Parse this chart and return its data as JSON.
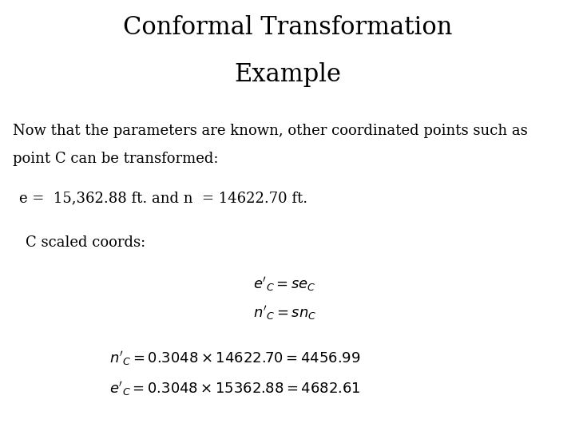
{
  "title_line1": "Conformal Transformation",
  "title_line2": "Example",
  "title_fontsize": 22,
  "title_fontfamily": "serif",
  "bg_color": "#ffffff",
  "text_color": "#000000",
  "body_text1_line1": "Now that the parameters are known, other coordinated points such as",
  "body_text1_line2": "point C can be transformed:",
  "body_text2": "e =  15,362.88 ft. and n  = 14622.70 ft.",
  "body_text3": "C scaled coords:",
  "eq1": "$e'_C = se_C$",
  "eq2": "$n'_C = sn_C$",
  "eq3": "$n'_C = 0.3048\\times14622.70 = 4456.99$",
  "eq4": "$e'_C = 0.3048\\times15362.88 = 4682.61$",
  "body_fontsize": 13,
  "eq_fontsize": 13,
  "eq_large_fontsize": 13
}
